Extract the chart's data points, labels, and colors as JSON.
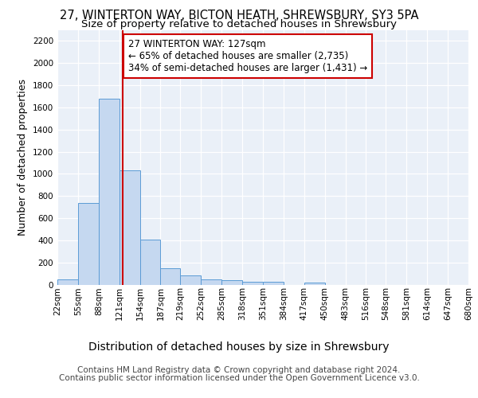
{
  "title_line1": "27, WINTERTON WAY, BICTON HEATH, SHREWSBURY, SY3 5PA",
  "title_line2": "Size of property relative to detached houses in Shrewsbury",
  "xlabel": "Distribution of detached houses by size in Shrewsbury",
  "ylabel": "Number of detached properties",
  "footer_line1": "Contains HM Land Registry data © Crown copyright and database right 2024.",
  "footer_line2": "Contains public sector information licensed under the Open Government Licence v3.0.",
  "annotation_line1": "27 WINTERTON WAY: 127sqm",
  "annotation_line2": "← 65% of detached houses are smaller (2,735)",
  "annotation_line3": "34% of semi-detached houses are larger (1,431) →",
  "property_size": 127,
  "bin_edges": [
    22,
    55,
    88,
    121,
    154,
    187,
    219,
    252,
    285,
    318,
    351,
    384,
    417,
    450,
    483,
    516,
    548,
    581,
    614,
    647,
    680
  ],
  "bar_heights": [
    50,
    740,
    1680,
    1030,
    405,
    150,
    80,
    45,
    40,
    25,
    25,
    0,
    20,
    0,
    0,
    0,
    0,
    0,
    0,
    0
  ],
  "bar_color": "#c5d8f0",
  "bar_edge_color": "#5b9bd5",
  "vline_color": "#cc0000",
  "vline_x": 127,
  "ylim": [
    0,
    2300
  ],
  "yticks": [
    0,
    200,
    400,
    600,
    800,
    1000,
    1200,
    1400,
    1600,
    1800,
    2000,
    2200
  ],
  "bg_color": "#eaf0f8",
  "grid_color": "#ffffff",
  "title_fontsize": 10.5,
  "subtitle_fontsize": 9.5,
  "ylabel_fontsize": 9,
  "xlabel_fontsize": 10,
  "tick_fontsize": 7.5,
  "footer_fontsize": 7.5,
  "annotation_fontsize": 8.5
}
